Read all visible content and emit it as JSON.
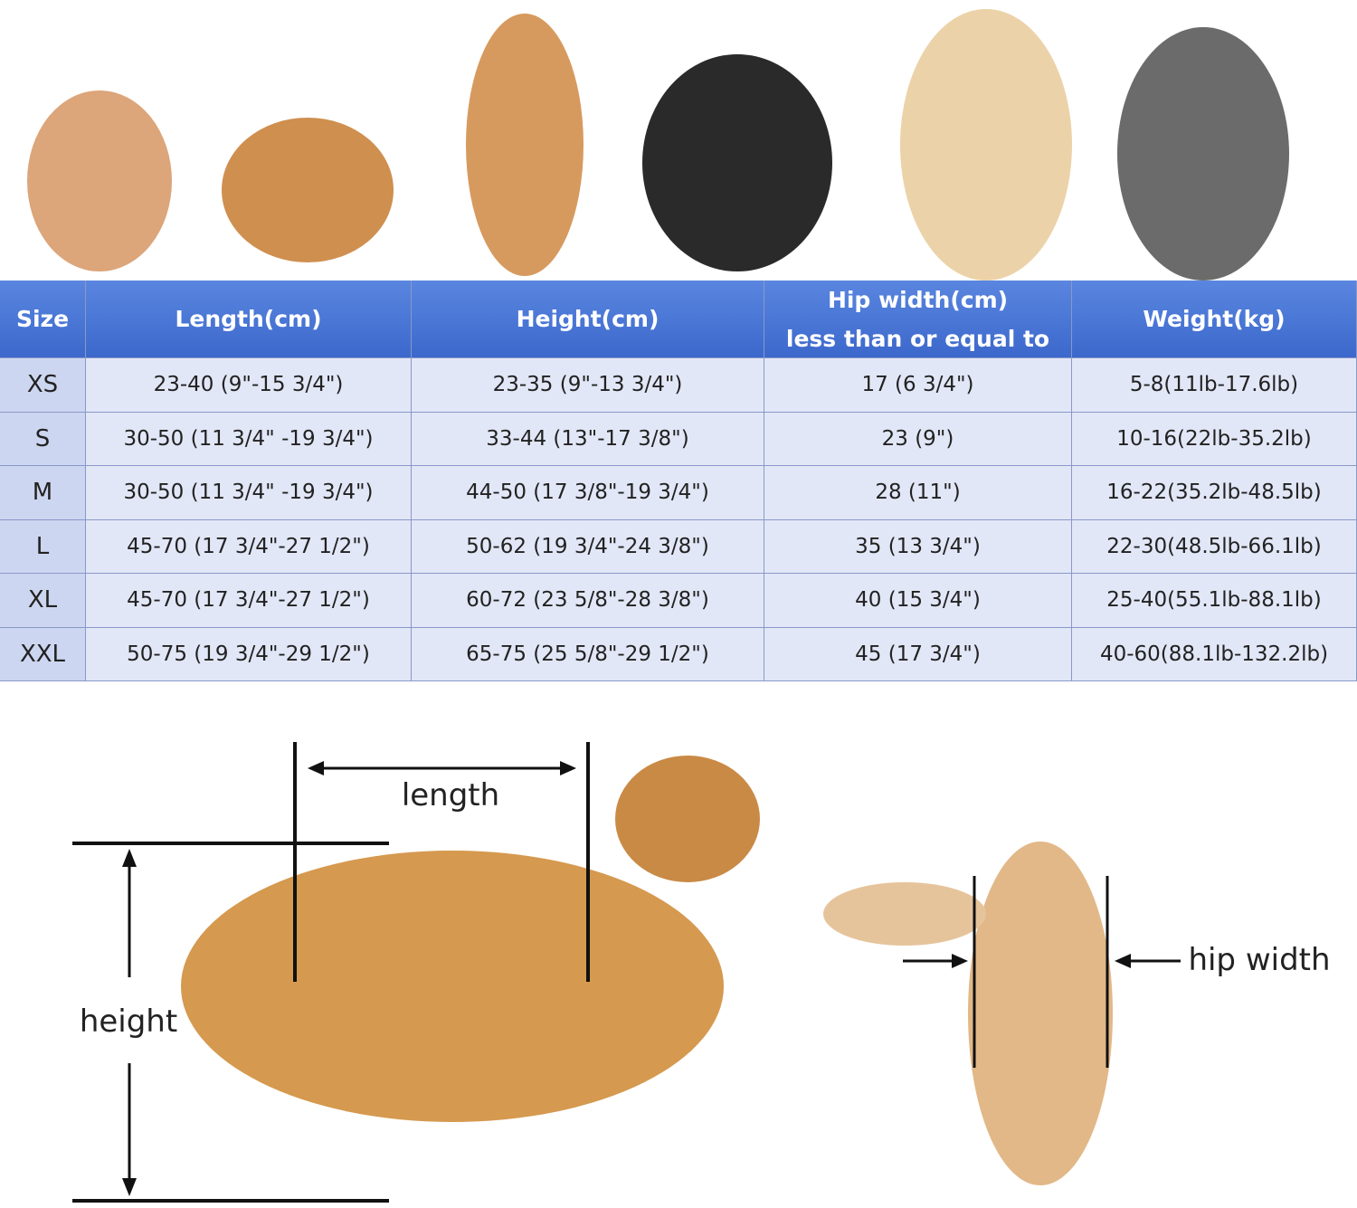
{
  "table": {
    "header": [
      "Size",
      "Length(cm)",
      "Height(cm)",
      "Hip width(cm)",
      "Weight(kg)"
    ],
    "header_note": "less than or equal to",
    "rows": [
      [
        "XS",
        "23-40 (9\"-15 3/4\")",
        "23-35 (9\"-13 3/4\")",
        "17 (6 3/4\")",
        "5-8(11lb-17.6lb)"
      ],
      [
        "S",
        "30-50 (11 3/4\" -19 3/4\")",
        "33-44 (13\"-17 3/8\")",
        "23 (9\")",
        "10-16(22lb-35.2lb)"
      ],
      [
        "M",
        "30-50 (11 3/4\" -19 3/4\")",
        "44-50 (17 3/8\"-19 3/4\")",
        "28 (11\")",
        "16-22(35.2lb-48.5lb)"
      ],
      [
        "L",
        "45-70 (17 3/4\"-27 1/2\")",
        "50-62 (19 3/4\"-24 3/8\")",
        "35 (13 3/4\")",
        "22-30(48.5lb-66.1lb)"
      ],
      [
        "XL",
        "45-70 (17 3/4\"-27 1/2\")",
        "60-72 (23 5/8\"-28 3/8\")",
        "40 (15 3/4\")",
        "25-40(55.1lb-88.1lb)"
      ],
      [
        "XXL",
        "50-75 (19 3/4\"-29 1/2\")",
        "65-75 (25 5/8\"-29 1/2\")",
        "45 (17 3/4\")",
        "40-60(88.1lb-132.2lb)"
      ]
    ]
  },
  "diagram": {
    "length_label": "length",
    "height_label": "height",
    "hip_label": "hip width"
  }
}
